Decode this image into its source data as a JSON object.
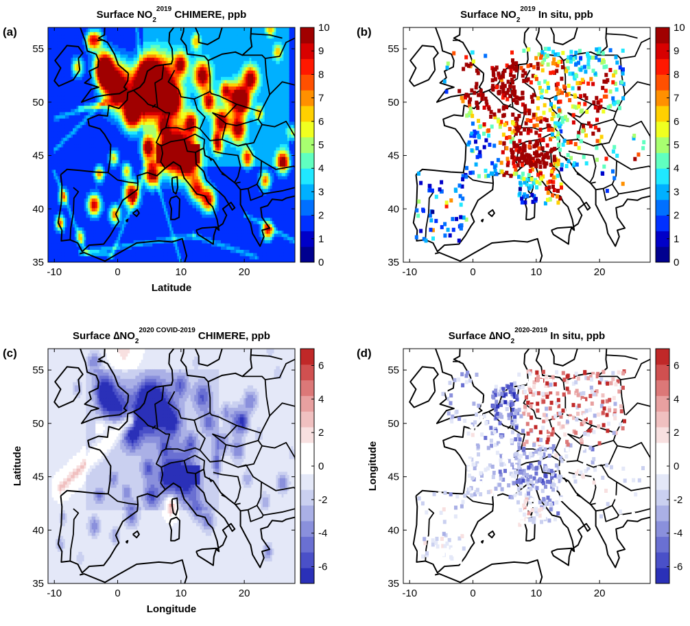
{
  "colors": {
    "abs_scale": [
      "#00008f",
      "#0000c8",
      "#0030ff",
      "#0070ff",
      "#00b0ff",
      "#20e8ff",
      "#60ffc0",
      "#a8ff70",
      "#f0ff20",
      "#ffd000",
      "#ff9000",
      "#ff5000",
      "#ff1800",
      "#d80000",
      "#a00000"
    ],
    "diff_scale": [
      "#2a30b8",
      "#4a50c8",
      "#6a70d2",
      "#8a90dc",
      "#aab0e6",
      "#cad0f0",
      "#e4e8f8",
      "#ffffff",
      "#ffffff",
      "#f8e0e0",
      "#f0c0c0",
      "#e8a0a0",
      "#dc7878",
      "#d05050",
      "#c02828"
    ],
    "coast": "#000000",
    "land_bg_abs": "#1a3cd8",
    "land_bg_diff": "#dfe2f4"
  },
  "chart_data": [
    {
      "panel_label": "(a)",
      "type": "heatmap",
      "title_pre": "Surface NO",
      "title_sub": "2",
      "title_sup": "2019",
      "title_post": " CHIMERE, ppb",
      "xlabel": "Latitude",
      "ylabel": "",
      "xlim": [
        -11,
        28
      ],
      "ylim": [
        35,
        57
      ],
      "xticks": [
        "-10",
        "0",
        "10",
        "20"
      ],
      "yticks": [
        "35",
        "40",
        "45",
        "50",
        "55"
      ],
      "colorbar": {
        "scale": "abs",
        "min": 0,
        "max": 10,
        "ticks": [
          "0",
          "1",
          "2",
          "3",
          "4",
          "5",
          "6",
          "7",
          "8",
          "9",
          "10"
        ]
      },
      "field": "abs_model"
    },
    {
      "panel_label": "(b)",
      "type": "scatter",
      "title_pre": "Surface NO",
      "title_sub": "2",
      "title_sup": "2019",
      "title_post": " In situ, ppb",
      "xlabel": "",
      "ylabel": "",
      "xlim": [
        -11,
        28
      ],
      "ylim": [
        35,
        57
      ],
      "xticks": [
        "-10",
        "0",
        "10",
        "20"
      ],
      "yticks": [
        "35",
        "40",
        "45",
        "50",
        "55"
      ],
      "colorbar": {
        "scale": "abs",
        "min": 0,
        "max": 10,
        "ticks": [
          "0",
          "1",
          "2",
          "3",
          "4",
          "5",
          "6",
          "7",
          "8",
          "9",
          "10"
        ]
      },
      "field": "abs_obs"
    },
    {
      "panel_label": "(c)",
      "type": "heatmap",
      "title_pre": "Surface ∆NO",
      "title_sub": "2",
      "title_sup": "2020 COVID-2019",
      "title_post": " CHIMERE, ppb",
      "xlabel": "Longitude",
      "ylabel": "Latitude",
      "xlim": [
        -11,
        28
      ],
      "ylim": [
        35,
        57
      ],
      "xticks": [
        "-10",
        "0",
        "10",
        "20"
      ],
      "yticks": [
        "35",
        "40",
        "45",
        "50",
        "55"
      ],
      "colorbar": {
        "scale": "diff",
        "min": -7,
        "max": 7,
        "ticks": [
          "-6",
          "-4",
          "-2",
          "0",
          "2",
          "4",
          "6"
        ]
      },
      "field": "diff_model"
    },
    {
      "panel_label": "(d)",
      "type": "scatter",
      "title_pre": "Surface ∆NO",
      "title_sub": "2",
      "title_sup": "2020-2019",
      "title_post": " In situ, ppb",
      "xlabel": "",
      "ylabel": "Longitude",
      "xlim": [
        -11,
        28
      ],
      "ylim": [
        35,
        57
      ],
      "xticks": [
        "-10",
        "0",
        "10",
        "20"
      ],
      "yticks": [
        "35",
        "40",
        "45",
        "50",
        "55"
      ],
      "colorbar": {
        "scale": "diff",
        "min": -7,
        "max": 7,
        "ticks": [
          "-6",
          "-4",
          "-2",
          "0",
          "2",
          "4",
          "6"
        ]
      },
      "field": "diff_obs"
    }
  ]
}
